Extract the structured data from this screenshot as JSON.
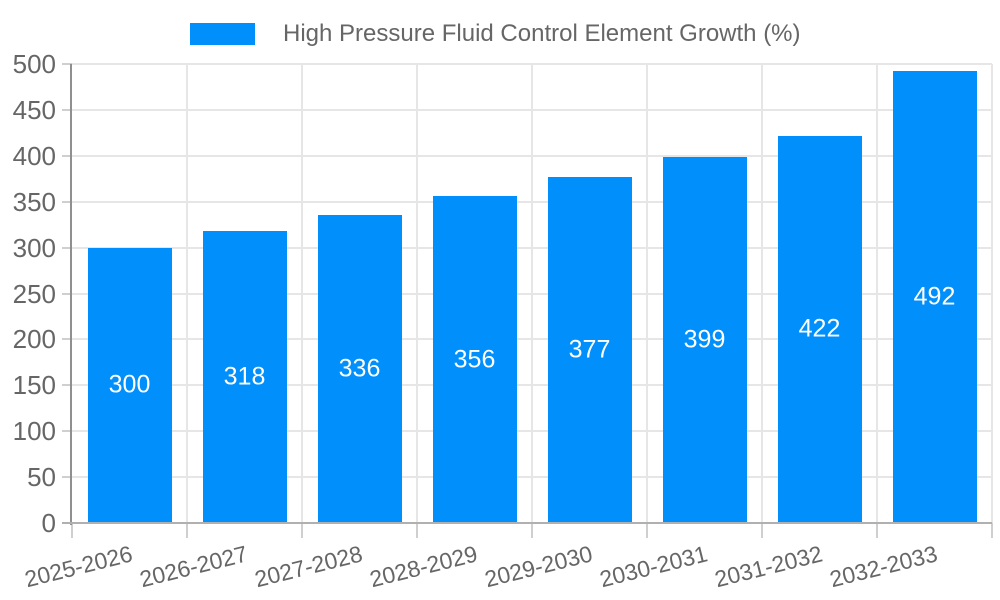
{
  "legend": {
    "series_label": "High Pressure Fluid Control Element Growth (%)"
  },
  "colors": {
    "bar": "#008FFB",
    "bar_label": "#ffffff",
    "grid_line": "#e6e6e6",
    "tick_mark": "#cfcfcf",
    "axis_line_y": "#8f8f8f",
    "axis_line_x": "#b0b0b0",
    "tick_text": "#666666",
    "legend_text": "#666666",
    "background": "#ffffff"
  },
  "chart_data": {
    "type": "bar",
    "title": "High Pressure Fluid Control Element Growth (%)",
    "categories": [
      "2025-2026",
      "2026-2027",
      "2027-2028",
      "2028-2029",
      "2029-2030",
      "2030-2031",
      "2031-2032",
      "2032-2033"
    ],
    "series": [
      {
        "name": "High Pressure Fluid Control Element Growth (%)",
        "values": [
          300,
          318,
          336,
          356,
          377,
          399,
          422,
          492
        ]
      }
    ],
    "xlabel": "",
    "ylabel": "",
    "ylim": [
      0,
      500
    ],
    "ytick_step": 50,
    "yticks": [
      0,
      50,
      100,
      150,
      200,
      250,
      300,
      350,
      400,
      450,
      500
    ],
    "grid": true,
    "legend_position": "top",
    "data_labels": "inside-center"
  }
}
